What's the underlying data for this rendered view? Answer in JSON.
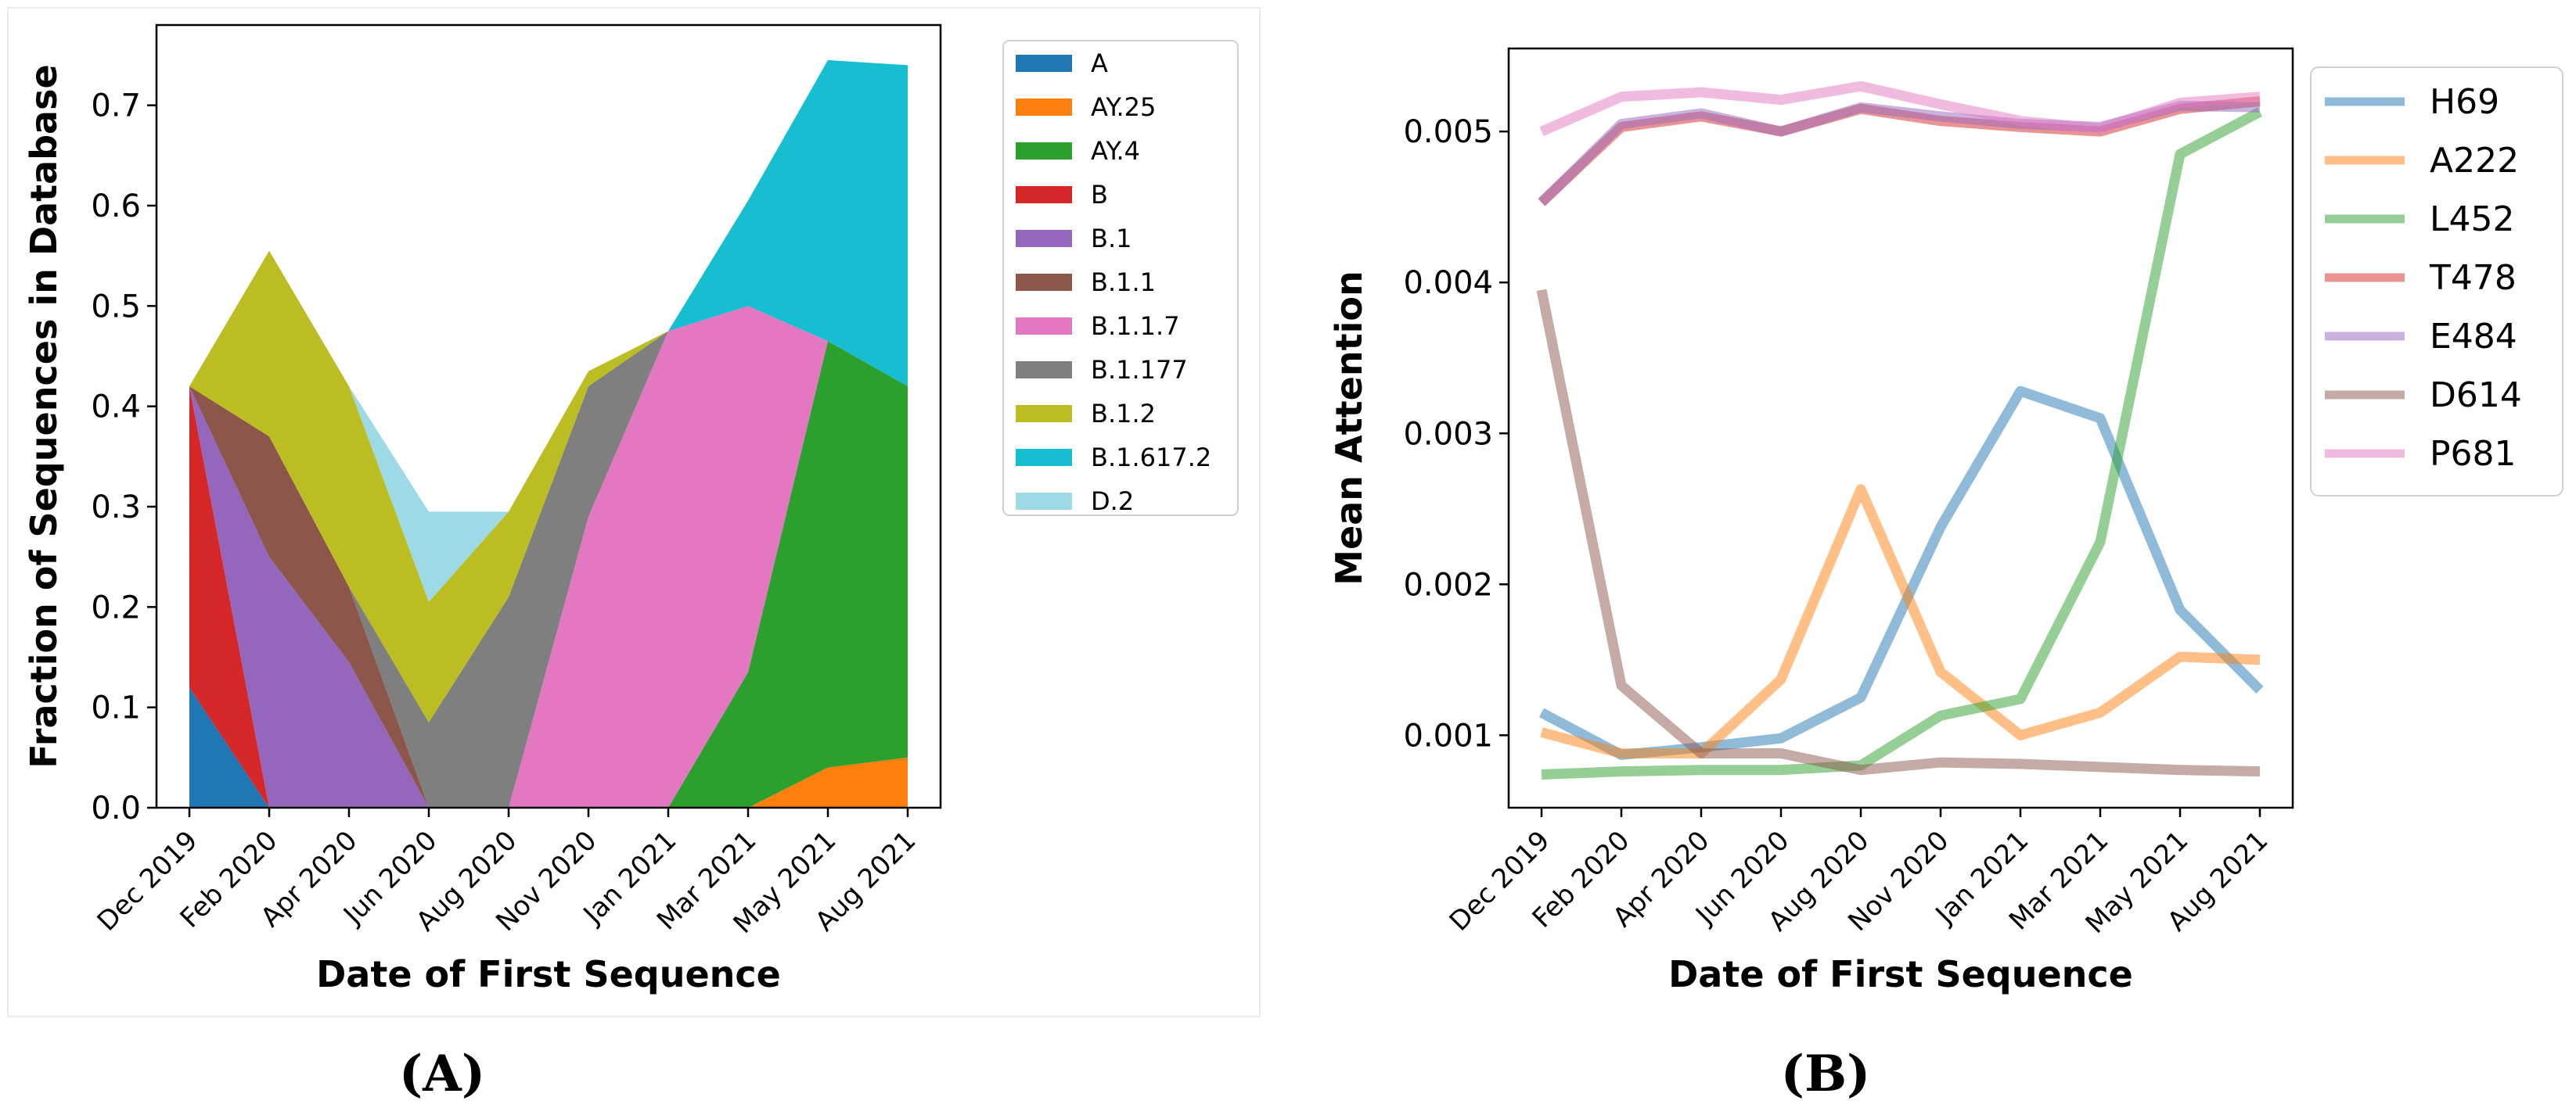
{
  "figure": {
    "panel_labels": [
      "(A)",
      "(B)"
    ]
  },
  "chart_data": [
    {
      "type": "area",
      "stacked": true,
      "panel": "(A)",
      "xlabel": "Date of First Sequence",
      "ylabel": "Fraction of Sequences in Database",
      "categories": [
        "Dec 2019",
        "Feb 2020",
        "Apr 2020",
        "Jun 2020",
        "Aug 2020",
        "Nov 2020",
        "Jan 2021",
        "Mar 2021",
        "May 2021",
        "Aug 2021"
      ],
      "ylim": [
        0,
        0.78
      ],
      "yticks": [
        0.0,
        0.1,
        0.2,
        0.3,
        0.4,
        0.5,
        0.6,
        0.7
      ],
      "ytick_labels": [
        "0.0",
        "0.1",
        "0.2",
        "0.3",
        "0.4",
        "0.5",
        "0.6",
        "0.7"
      ],
      "legend_position": "outside-right",
      "series": [
        {
          "name": "A",
          "color": "#1f77b4",
          "values": [
            0.12,
            0,
            0,
            0,
            0,
            0,
            0,
            0,
            0,
            0
          ]
        },
        {
          "name": "AY.25",
          "color": "#ff7f0e",
          "values": [
            0,
            0,
            0,
            0,
            0,
            0,
            0,
            0,
            0.04,
            0.05
          ]
        },
        {
          "name": "AY.4",
          "color": "#2ca02c",
          "values": [
            0,
            0,
            0,
            0,
            0,
            0,
            0,
            0.135,
            0.425,
            0.37
          ]
        },
        {
          "name": "B",
          "color": "#d62728",
          "values": [
            0.3,
            0,
            0,
            0,
            0,
            0,
            0,
            0,
            0,
            0
          ]
        },
        {
          "name": "B.1",
          "color": "#9467bd",
          "values": [
            0,
            0.25,
            0.145,
            0,
            0,
            0,
            0,
            0,
            0,
            0
          ]
        },
        {
          "name": "B.1.1",
          "color": "#8c564b",
          "values": [
            0,
            0.12,
            0.075,
            0,
            0,
            0,
            0,
            0,
            0,
            0
          ]
        },
        {
          "name": "B.1.1.7",
          "color": "#e377c2",
          "values": [
            0,
            0,
            0,
            0,
            0,
            0.29,
            0.475,
            0.365,
            0,
            0
          ]
        },
        {
          "name": "B.1.177",
          "color": "#7f7f7f",
          "values": [
            0,
            0,
            0,
            0.085,
            0.21,
            0.13,
            0,
            0,
            0,
            0
          ]
        },
        {
          "name": "B.1.2",
          "color": "#bcbd22",
          "values": [
            0,
            0.185,
            0.2,
            0.12,
            0.085,
            0.015,
            0,
            0,
            0,
            0
          ]
        },
        {
          "name": "B.1.617.2",
          "color": "#17becf",
          "values": [
            0,
            0,
            0,
            0,
            0,
            0,
            0,
            0.105,
            0.28,
            0.32
          ]
        },
        {
          "name": "D.2",
          "color": "#9edae5",
          "values": [
            0,
            0,
            0,
            0.09,
            0,
            0,
            0,
            0,
            0,
            0
          ]
        }
      ]
    },
    {
      "type": "line",
      "panel": "(B)",
      "xlabel": "Date of First Sequence",
      "ylabel": "Mean Attention",
      "categories": [
        "Dec 2019",
        "Feb 2020",
        "Apr 2020",
        "Jun 2020",
        "Aug 2020",
        "Nov 2020",
        "Jan 2021",
        "Mar 2021",
        "May 2021",
        "Aug 2021"
      ],
      "ylim": [
        0.00052,
        0.00555
      ],
      "yticks": [
        0.001,
        0.002,
        0.003,
        0.004,
        0.005
      ],
      "ytick_labels": [
        "0.001",
        "0.002",
        "0.003",
        "0.004",
        "0.005"
      ],
      "legend_position": "outside-right",
      "series": [
        {
          "name": "H69",
          "color": "#1f77b4",
          "values": [
            0.00115,
            0.00087,
            0.00092,
            0.00098,
            0.00125,
            0.00238,
            0.00328,
            0.0031,
            0.00183,
            0.0013
          ]
        },
        {
          "name": "A222",
          "color": "#ff7f0e",
          "values": [
            0.00102,
            0.00088,
            0.00088,
            0.00137,
            0.00263,
            0.00142,
            0.001,
            0.00115,
            0.00152,
            0.0015
          ]
        },
        {
          "name": "L452",
          "color": "#2ca02c",
          "values": [
            0.00074,
            0.00076,
            0.00077,
            0.00077,
            0.0008,
            0.00113,
            0.00124,
            0.00228,
            0.00485,
            0.00513
          ]
        },
        {
          "name": "T478",
          "color": "#d62728",
          "values": [
            0.00453,
            0.00503,
            0.0051,
            0.005,
            0.00515,
            0.00507,
            0.00503,
            0.005,
            0.00515,
            0.0052
          ]
        },
        {
          "name": "E484",
          "color": "#9467bd",
          "values": [
            0.00453,
            0.00505,
            0.00512,
            0.005,
            0.00516,
            0.0051,
            0.00505,
            0.00503,
            0.00517,
            0.00516
          ]
        },
        {
          "name": "D614",
          "color": "#8c564b",
          "values": [
            0.00395,
            0.00133,
            0.00088,
            0.00088,
            0.00077,
            0.00082,
            0.00081,
            0.00079,
            0.00077,
            0.00076
          ]
        },
        {
          "name": "P681",
          "color": "#e377c2",
          "values": [
            0.005,
            0.00523,
            0.00526,
            0.00521,
            0.0053,
            0.00518,
            0.00507,
            0.00502,
            0.00519,
            0.00523
          ]
        }
      ]
    }
  ]
}
